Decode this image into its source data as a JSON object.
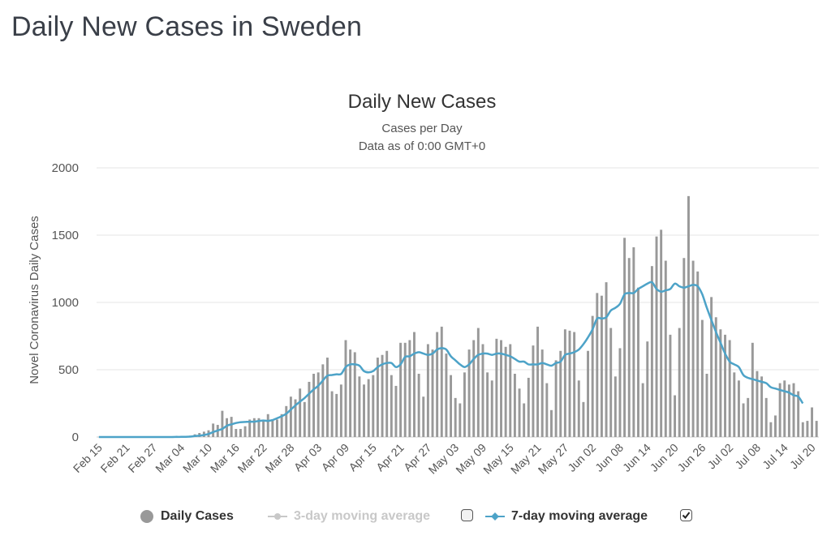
{
  "page_title": "Daily New Cases in Sweden",
  "chart_data": {
    "type": "bar",
    "title": "Daily New Cases",
    "subtitle": [
      "Cases per Day",
      "Data as of 0:00 GMT+0"
    ],
    "ylabel": "Novel Coronavirus Daily Cases",
    "ylim": [
      0,
      2000
    ],
    "yticks": [
      0,
      500,
      1000,
      1500,
      2000
    ],
    "start_date": "2020-02-15",
    "x_tick_labels": [
      "Feb 15",
      "Feb 21",
      "Feb 27",
      "Mar 04",
      "Mar 10",
      "Mar 16",
      "Mar 22",
      "Mar 28",
      "Apr 03",
      "Apr 09",
      "Apr 15",
      "Apr 21",
      "Apr 27",
      "May 03",
      "May 09",
      "May 15",
      "May 21",
      "May 27",
      "Jun 02",
      "Jun 08",
      "Jun 14",
      "Jun 20",
      "Jun 26",
      "Jul 02",
      "Jul 08",
      "Jul 14",
      "Jul 20"
    ],
    "grid": true,
    "series": [
      {
        "name": "Daily Cases",
        "type": "bar",
        "color": "#999999",
        "values": [
          0,
          0,
          0,
          0,
          0,
          0,
          0,
          0,
          0,
          0,
          0,
          0,
          0,
          0,
          1,
          1,
          1,
          2,
          5,
          6,
          10,
          20,
          30,
          40,
          50,
          100,
          90,
          195,
          140,
          150,
          60,
          60,
          80,
          130,
          140,
          140,
          120,
          170,
          130,
          130,
          170,
          230,
          300,
          280,
          360,
          260,
          410,
          470,
          480,
          540,
          590,
          340,
          320,
          390,
          720,
          650,
          630,
          450,
          390,
          430,
          460,
          590,
          610,
          640,
          460,
          380,
          700,
          700,
          720,
          780,
          470,
          300,
          690,
          650,
          780,
          820,
          620,
          460,
          290,
          250,
          480,
          650,
          720,
          810,
          690,
          480,
          420,
          730,
          720,
          670,
          690,
          470,
          360,
          250,
          440,
          680,
          820,
          650,
          400,
          200,
          570,
          640,
          800,
          790,
          780,
          420,
          260,
          640,
          900,
          1070,
          1050,
          1150,
          810,
          450,
          660,
          1480,
          1330,
          1410,
          1110,
          400,
          710,
          1270,
          1490,
          1540,
          1310,
          760,
          310,
          810,
          1330,
          1790,
          1310,
          1230,
          870,
          470,
          1040,
          890,
          800,
          760,
          720,
          480,
          420,
          250,
          290,
          700,
          490,
          450,
          290,
          110,
          160,
          400,
          420,
          390,
          400,
          340,
          110,
          120,
          220,
          120
        ]
      },
      {
        "name": "7-day moving average",
        "type": "line",
        "color": "#4da3c8",
        "values": [
          0,
          0,
          0,
          0,
          0,
          0,
          0,
          0,
          0,
          0,
          0,
          0,
          0,
          0,
          0,
          0,
          0,
          1,
          1,
          2,
          3,
          7,
          10,
          15,
          23,
          37,
          49,
          60,
          84,
          94,
          104,
          110,
          112,
          114,
          114,
          119,
          123,
          120,
          126,
          140,
          154,
          173,
          204,
          235,
          263,
          290,
          322,
          354,
          381,
          420,
          456,
          461,
          466,
          469,
          520,
          540,
          540,
          530,
          490,
          480,
          490,
          520,
          540,
          550,
          550,
          520,
          540,
          595,
          600,
          620,
          630,
          620,
          610,
          620,
          650,
          660,
          650,
          600,
          570,
          540,
          520,
          540,
          580,
          610,
          620,
          620,
          610,
          620,
          620,
          610,
          600,
          580,
          560,
          560,
          540,
          540,
          540,
          550,
          540,
          530,
          550,
          560,
          610,
          620,
          630,
          650,
          690,
          740,
          800,
          880,
          880,
          890,
          940,
          960,
          990,
          1060,
          1070,
          1070,
          1100,
          1120,
          1140,
          1150,
          1100,
          1080,
          1090,
          1100,
          1140,
          1120,
          1110,
          1120,
          1130,
          1120,
          1060,
          960,
          870,
          780,
          700,
          620,
          560,
          540,
          520,
          460,
          440,
          430,
          420,
          410,
          400,
          370,
          360,
          350,
          340,
          330,
          310,
          300,
          250
        ]
      }
    ],
    "legend": [
      {
        "label": "Daily Cases",
        "checked": true
      },
      {
        "label": "3-day moving average",
        "checked": false
      },
      {
        "label": "7-day moving average",
        "checked": true
      }
    ],
    "legend_position": "bottom"
  }
}
